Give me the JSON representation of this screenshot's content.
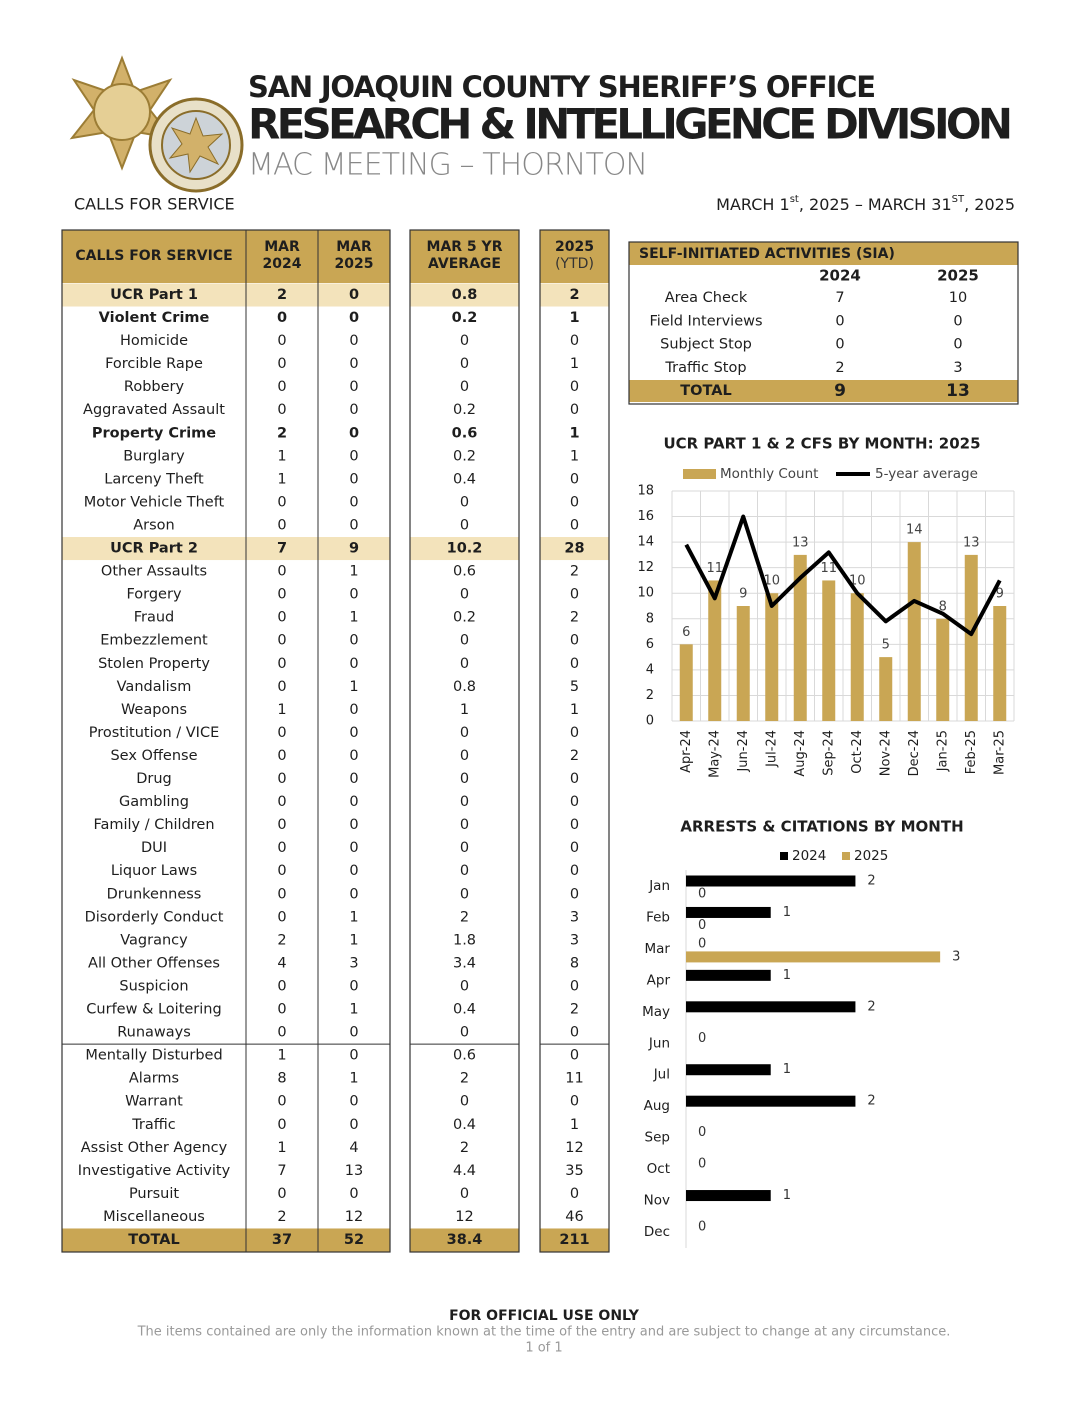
{
  "header": {
    "title1": "SAN JOAQUIN COUNTY SHERIFF’S OFFICE",
    "title2": "RESEARCH & INTELLIGENCE DIVISION",
    "title3": "MAC MEETING – THORNTON",
    "section": "CALLS FOR SERVICE",
    "date_range": [
      "MARCH 1",
      "st",
      ", 2025 – MARCH 31",
      "ST",
      ", 2025"
    ]
  },
  "table": {
    "columns": [
      [
        "CALLS FOR SERVICE"
      ],
      [
        "MAR",
        "2024"
      ],
      [
        "MAR",
        "2025"
      ],
      [
        "MAR 5 YR",
        "AVERAGE"
      ],
      [
        "2025",
        "(YTD)"
      ]
    ],
    "sections": [
      [
        {
          "label": "UCR Part 1",
          "values": [
            2,
            0,
            0.8,
            2
          ],
          "style": "highlight"
        },
        {
          "label": "Violent Crime",
          "values": [
            0,
            0,
            0.2,
            1
          ],
          "style": "bold"
        },
        {
          "label": "Homicide",
          "values": [
            0,
            0,
            0,
            0
          ]
        },
        {
          "label": "Forcible Rape",
          "values": [
            0,
            0,
            0,
            1
          ]
        },
        {
          "label": "Robbery",
          "values": [
            0,
            0,
            0,
            0
          ]
        },
        {
          "label": "Aggravated Assault",
          "values": [
            0,
            0,
            0.2,
            0
          ]
        },
        {
          "label": "Property Crime",
          "values": [
            2,
            0,
            0.6,
            1
          ],
          "style": "bold"
        },
        {
          "label": "Burglary",
          "values": [
            1,
            0,
            0.2,
            1
          ]
        },
        {
          "label": "Larceny Theft",
          "values": [
            1,
            0,
            0.4,
            0
          ]
        },
        {
          "label": "Motor Vehicle Theft",
          "values": [
            0,
            0,
            0,
            0
          ]
        },
        {
          "label": "Arson",
          "values": [
            0,
            0,
            0,
            0
          ]
        },
        {
          "label": "UCR Part 2",
          "values": [
            7,
            9,
            10.2,
            28
          ],
          "style": "highlight"
        },
        {
          "label": "Other Assaults",
          "values": [
            0,
            1,
            0.6,
            2
          ]
        },
        {
          "label": "Forgery",
          "values": [
            0,
            0,
            0,
            0
          ]
        },
        {
          "label": "Fraud",
          "values": [
            0,
            1,
            0.2,
            2
          ]
        },
        {
          "label": "Embezzlement",
          "values": [
            0,
            0,
            0,
            0
          ]
        },
        {
          "label": "Stolen Property",
          "values": [
            0,
            0,
            0,
            0
          ]
        },
        {
          "label": "Vandalism",
          "values": [
            0,
            1,
            0.8,
            5
          ]
        },
        {
          "label": "Weapons",
          "values": [
            1,
            0,
            1,
            1
          ]
        },
        {
          "label": "Prostitution / VICE",
          "values": [
            0,
            0,
            0,
            0
          ]
        },
        {
          "label": "Sex Offense",
          "values": [
            0,
            0,
            0,
            2
          ]
        },
        {
          "label": "Drug",
          "values": [
            0,
            0,
            0,
            0
          ]
        },
        {
          "label": "Gambling",
          "values": [
            0,
            0,
            0,
            0
          ]
        },
        {
          "label": "Family / Children",
          "values": [
            0,
            0,
            0,
            0
          ]
        },
        {
          "label": "DUI",
          "values": [
            0,
            0,
            0,
            0
          ]
        },
        {
          "label": "Liquor Laws",
          "values": [
            0,
            0,
            0,
            0
          ]
        },
        {
          "label": "Drunkenness",
          "values": [
            0,
            0,
            0,
            0
          ]
        },
        {
          "label": "Disorderly Conduct",
          "values": [
            0,
            1,
            2,
            3
          ]
        },
        {
          "label": "Vagrancy",
          "values": [
            2,
            1,
            1.8,
            3
          ]
        },
        {
          "label": "All Other Offenses",
          "values": [
            4,
            3,
            3.4,
            8
          ]
        },
        {
          "label": "Suspicion",
          "values": [
            0,
            0,
            0,
            0
          ]
        },
        {
          "label": "Curfew & Loitering",
          "values": [
            0,
            1,
            0.4,
            2
          ]
        },
        {
          "label": "Runaways",
          "values": [
            0,
            0,
            0,
            0
          ]
        }
      ],
      [
        {
          "label": "Mentally Disturbed",
          "values": [
            1,
            0,
            0.6,
            0
          ]
        },
        {
          "label": "Alarms",
          "values": [
            8,
            1,
            2,
            11
          ]
        },
        {
          "label": "Warrant",
          "values": [
            0,
            0,
            0,
            0
          ]
        },
        {
          "label": "Traffic",
          "values": [
            0,
            0,
            0.4,
            1
          ]
        },
        {
          "label": "Assist Other Agency",
          "values": [
            1,
            4,
            2,
            12
          ]
        },
        {
          "label": "Investigative Activity",
          "values": [
            7,
            13,
            4.4,
            35
          ]
        },
        {
          "label": "Pursuit",
          "values": [
            0,
            0,
            0,
            0
          ]
        },
        {
          "label": "Miscellaneous",
          "values": [
            2,
            12,
            12,
            46
          ]
        }
      ]
    ],
    "total": {
      "label": "TOTAL",
      "values": [
        37,
        52,
        38.4,
        211
      ]
    }
  },
  "sia": {
    "title": "SELF-INITIATED ACTIVITIES (SIA)",
    "columns": [
      "2024",
      "2025"
    ],
    "rows": [
      {
        "label": "Area Check",
        "values": [
          7,
          10
        ]
      },
      {
        "label": "Field Interviews",
        "values": [
          0,
          0
        ]
      },
      {
        "label": "Subject Stop",
        "values": [
          0,
          0
        ]
      },
      {
        "label": "Traffic Stop",
        "values": [
          2,
          3
        ]
      }
    ],
    "total": {
      "label": "TOTAL",
      "values": [
        9,
        13
      ]
    }
  },
  "chart_data": [
    {
      "type": "combo",
      "title": "UCR PART 1 & 2 CFS BY MONTH: 2025",
      "categories": [
        "Apr-24",
        "May-24",
        "Jun-24",
        "Jul-24",
        "Aug-24",
        "Sep-24",
        "Oct-24",
        "Nov-24",
        "Dec-24",
        "Jan-25",
        "Feb-25",
        "Mar-25"
      ],
      "series": [
        {
          "name": "Monthly Count",
          "type": "bar",
          "color": "#c9a654",
          "values": [
            6,
            11,
            9,
            10,
            13,
            11,
            10,
            5,
            14,
            8,
            13,
            9
          ]
        },
        {
          "name": "5-year average",
          "type": "line",
          "color": "#000000",
          "values": [
            13.8,
            9.6,
            16,
            9,
            11.2,
            13.2,
            10,
            7.8,
            9.4,
            8.4,
            6.8,
            11
          ]
        }
      ],
      "ylim": [
        0,
        18
      ],
      "yticks": [
        0,
        2,
        4,
        6,
        8,
        10,
        12,
        14,
        16,
        18
      ],
      "grid": true
    },
    {
      "type": "bar",
      "orientation": "horizontal",
      "title": "ARRESTS & CITATIONS BY MONTH",
      "categories": [
        "Jan",
        "Feb",
        "Mar",
        "Apr",
        "May",
        "Jun",
        "Jul",
        "Aug",
        "Sep",
        "Oct",
        "Nov",
        "Dec"
      ],
      "series": [
        {
          "name": "2024",
          "color": "#000000",
          "values": [
            2,
            1,
            0,
            1,
            2,
            0,
            1,
            2,
            0,
            0,
            1,
            0
          ]
        },
        {
          "name": "2025",
          "color": "#c9a654",
          "values": [
            0,
            0,
            3,
            null,
            null,
            null,
            null,
            null,
            null,
            null,
            null,
            null
          ]
        }
      ],
      "xlim": [
        0,
        3.5
      ]
    }
  ],
  "footer": {
    "notice": "FOR OFFICIAL USE ONLY",
    "disclaimer": "The items contained are only the information known at the time of the entry and are subject to change at any circumstance.",
    "page": "1 of 1"
  }
}
